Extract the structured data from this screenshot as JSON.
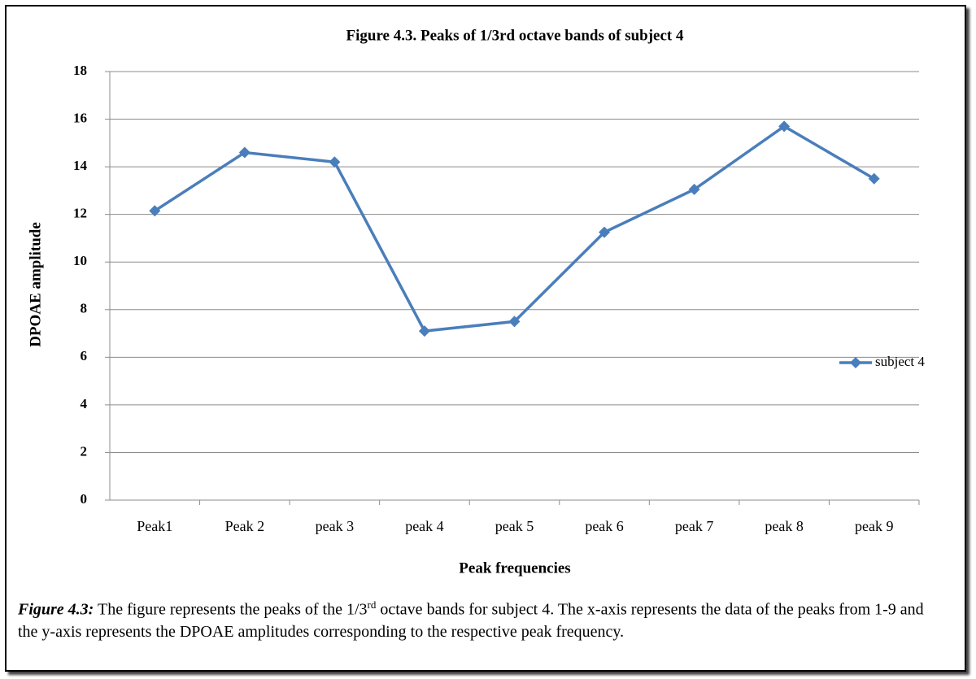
{
  "chart_data": {
    "type": "line",
    "title": "Figure 4.3. Peaks of 1/3rd octave bands of subject 4",
    "x_label": "Peak frequencies",
    "y_label": "DPOAE amplitude",
    "categories": [
      "Peak1",
      "Peak 2",
      "peak 3",
      "peak 4",
      "peak 5",
      "peak 6",
      "peak 7",
      "peak 8",
      "peak 9"
    ],
    "series": [
      {
        "name": "subject 4",
        "color": "#4a7ebb",
        "values": [
          12.15,
          14.6,
          14.2,
          7.1,
          7.5,
          11.25,
          13.05,
          15.7,
          13.5
        ]
      }
    ],
    "ylim": [
      0,
      18
    ],
    "yticks": [
      0,
      2,
      4,
      6,
      8,
      10,
      12,
      14,
      16,
      18
    ],
    "grid": true,
    "legend": "right"
  },
  "caption": {
    "label": "Figure 4.3:",
    "text_before": "The figure represents the peaks of the 1/3",
    "superscript": "rd",
    "text_after": "octave bands for subject 4. The x-axis represents the data of the peaks from 1-9 and the y-axis represents the DPOAE amplitudes corresponding to the respective peak frequency."
  }
}
